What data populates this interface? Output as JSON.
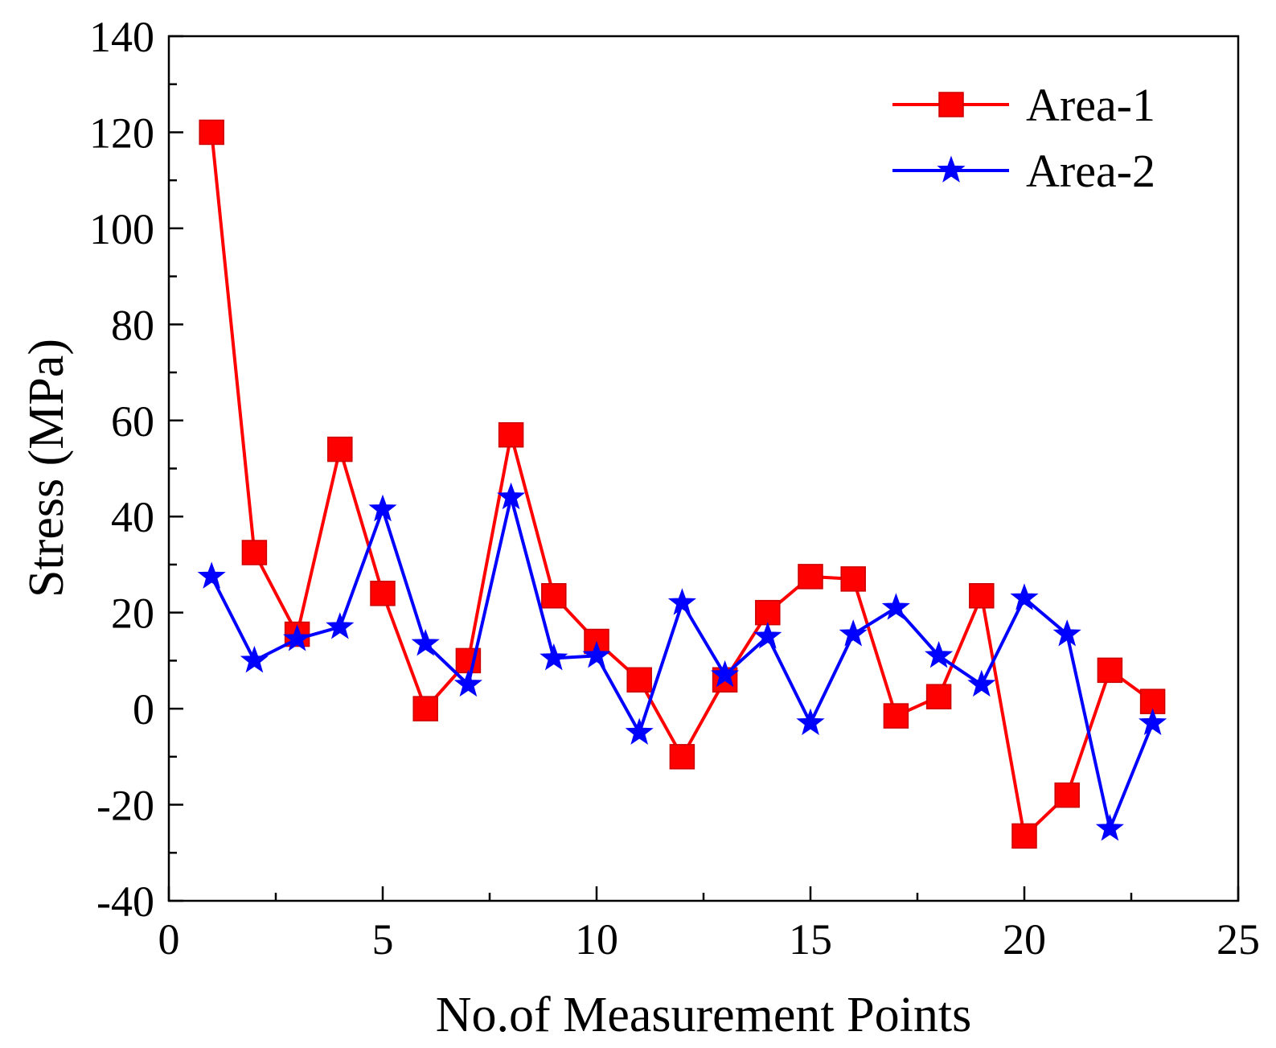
{
  "chart_data": {
    "type": "line",
    "title": "",
    "xlabel": "No.of Measurement Points",
    "ylabel": "Stress (MPa)",
    "xlim": [
      0,
      25
    ],
    "ylim": [
      -40,
      140
    ],
    "xticks": [
      0,
      5,
      10,
      15,
      20,
      25
    ],
    "yticks": [
      -40,
      -20,
      0,
      20,
      40,
      60,
      80,
      100,
      120,
      140
    ],
    "x_tick_labels": [
      "0",
      "5",
      "10",
      "15",
      "20",
      "25"
    ],
    "y_tick_labels": [
      "-40",
      "-20",
      "0",
      "20",
      "40",
      "60",
      "80",
      "100",
      "120",
      "140"
    ],
    "grid": false,
    "legend_position": "top-right",
    "x": [
      1,
      2,
      3,
      4,
      5,
      6,
      7,
      8,
      9,
      10,
      11,
      12,
      13,
      14,
      15,
      16,
      17,
      18,
      19,
      20,
      21,
      22,
      23
    ],
    "series": [
      {
        "name": "Area-1",
        "color": "#ff0000",
        "marker": "square",
        "values": [
          120,
          32.5,
          15.5,
          54,
          24,
          0,
          10,
          57,
          23.5,
          14,
          6,
          -10,
          6,
          20,
          27.5,
          27,
          -1.5,
          2.5,
          23.5,
          -26.5,
          -18,
          8,
          1.5
        ]
      },
      {
        "name": "Area-2",
        "color": "#0000ff",
        "marker": "star",
        "values": [
          27.5,
          10,
          14.5,
          17,
          41.5,
          13.5,
          5,
          44,
          10.5,
          11,
          -5,
          22,
          7,
          15,
          -3,
          15.5,
          21,
          11,
          5,
          23,
          15.5,
          -25,
          -3
        ]
      }
    ]
  }
}
